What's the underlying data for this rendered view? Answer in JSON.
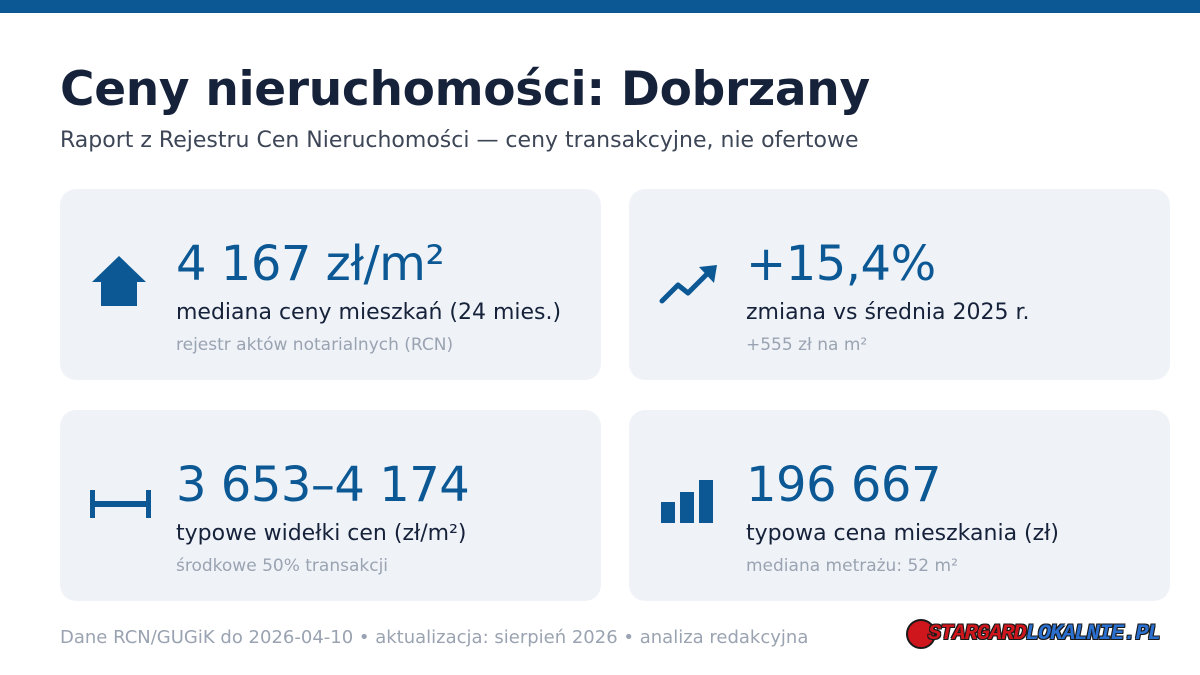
{
  "header": {
    "title": "Ceny nieruchomości: Dobrzany",
    "subtitle": "Raport z Rejestru Cen Nieruchomości — ceny transakcyjne, nie ofertowe"
  },
  "cards": [
    {
      "icon": "house-icon",
      "value": "4 167 zł/m²",
      "label": "mediana ceny mieszkań (24 mies.)",
      "note": "rejestr aktów notarialnych (RCN)"
    },
    {
      "icon": "trend-up-icon",
      "value": "+15,4%",
      "label": "zmiana vs średnia 2025 r.",
      "note": "+555 zł na m²"
    },
    {
      "icon": "range-icon",
      "value": "3 653–4 174",
      "label": "typowe widełki cen (zł/m²)",
      "note": "środkowe 50% transakcji"
    },
    {
      "icon": "bar-chart-icon",
      "value": "196 667",
      "label": "typowa cena mieszkania (zł)",
      "note": "mediana metrażu: 52 m²"
    }
  ],
  "footer": {
    "text": "Dane RCN/GUGiK do 2026-04-10 • aktualizacja: sierpień 2026 • analiza redakcyjna",
    "logo_main": "STARGARD",
    "logo_accent": "LOKALNIE.PL"
  },
  "colors": {
    "accent": "#0b5894",
    "title": "#16213a",
    "muted": "#9aa3b1",
    "card_background": "#eff3f8",
    "logo_red": "#d0161d"
  }
}
